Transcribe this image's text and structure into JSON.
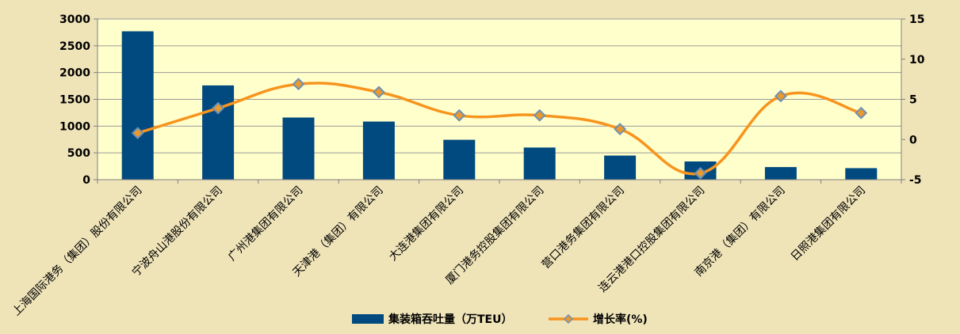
{
  "chart_data": {
    "type": "bar+line",
    "categories": [
      "上海国际港务（集团）股份有限公司",
      "宁波舟山港股份有限公司",
      "广州港集团有限公司",
      "天津港（集团）有限公司",
      "大连港集团有限公司",
      "厦门港务控股集团有限公司",
      "营口港务集团有限公司",
      "连云港港口控股集团有限公司",
      "南京港（集团）有限公司",
      "日照港集团有限公司"
    ],
    "series": [
      {
        "name": "集装箱吞吐量（万TEU）",
        "type": "bar",
        "axis": "left",
        "values": [
          2770,
          1760,
          1160,
          1085,
          745,
          600,
          450,
          340,
          235,
          215
        ]
      },
      {
        "name": "增长率(%)",
        "type": "line",
        "axis": "right",
        "values": [
          0.8,
          3.9,
          6.9,
          5.9,
          3.0,
          3.0,
          1.3,
          -4.2,
          5.4,
          3.3
        ]
      }
    ],
    "y_left": {
      "min": 0,
      "max": 3000,
      "ticks": [
        0,
        500,
        1000,
        1500,
        2000,
        2500,
        3000
      ]
    },
    "y_right": {
      "min": -5,
      "max": 15,
      "ticks": [
        -5,
        0,
        5,
        10,
        15
      ]
    },
    "grid": true,
    "legend_position": "bottom",
    "colors": {
      "bar": "#004A7F",
      "line": "#F7941D",
      "marker_fill": "#E89A2C",
      "marker_stroke": "#6F8FB5",
      "plot_bg": "#FFFFCC",
      "outer_bg": "#EFE3B8",
      "grid": "#9A9A9A"
    }
  }
}
